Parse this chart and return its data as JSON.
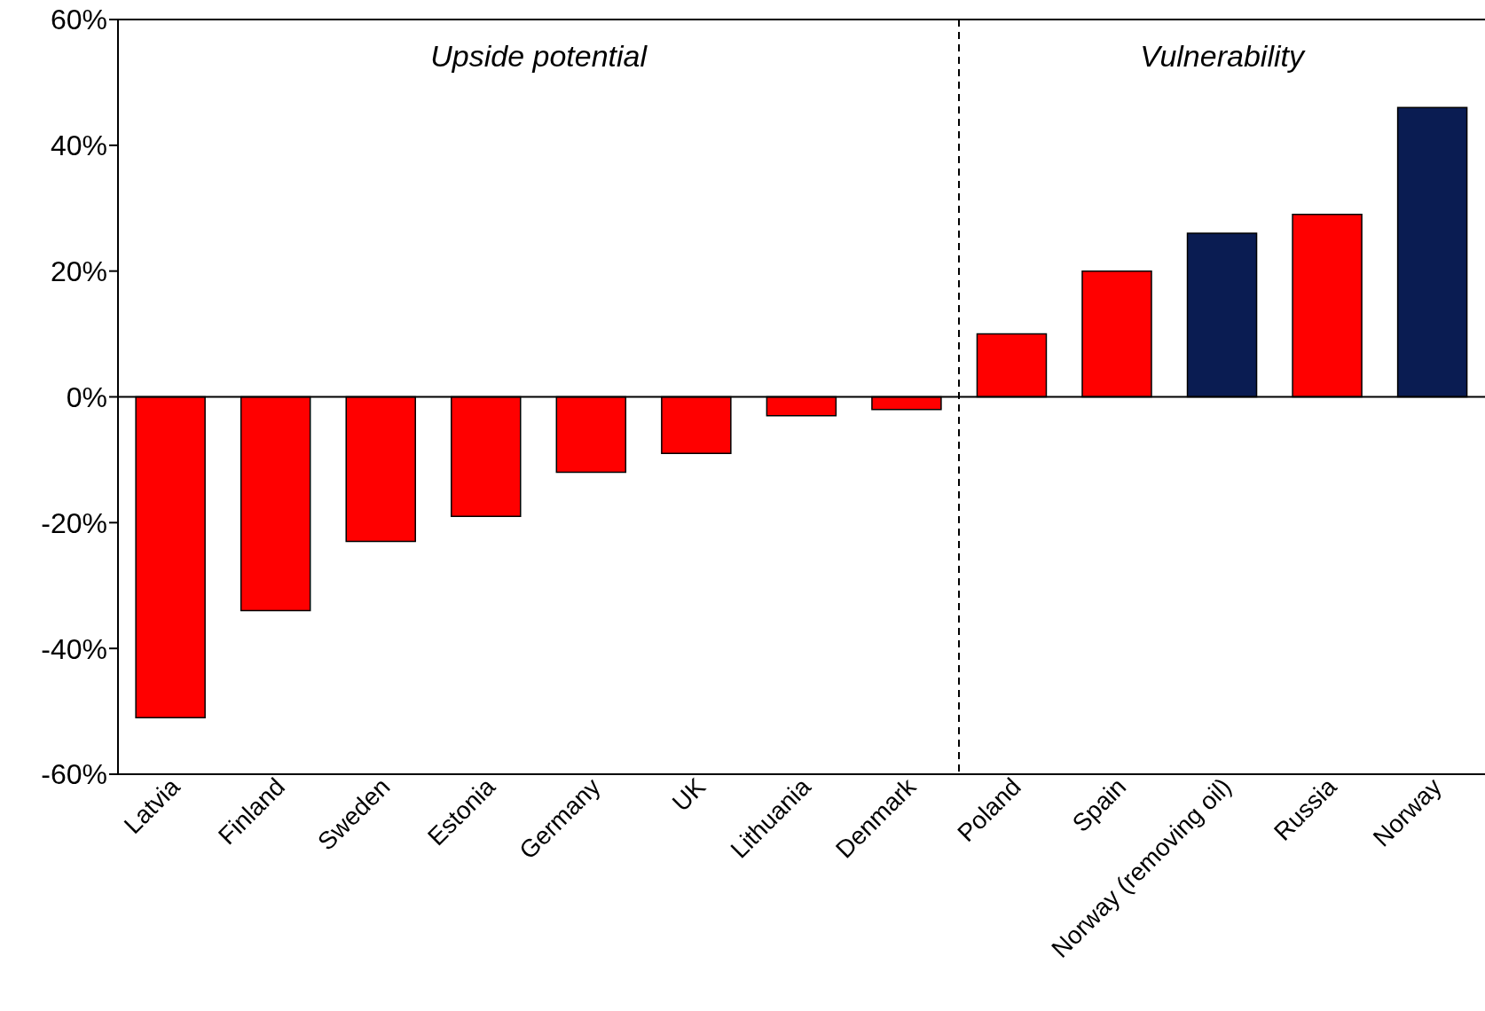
{
  "chart_data": {
    "type": "bar",
    "categories": [
      "Latvia",
      "Finland",
      "Sweden",
      "Estonia",
      "Germany",
      "UK",
      "Lithuania",
      "Denmark",
      "Poland",
      "Spain",
      "Norway (removing oil)",
      "Russia",
      "Norway"
    ],
    "values": [
      -51,
      -34,
      -23,
      -19,
      -12,
      -9,
      -3,
      -2,
      10,
      20,
      26,
      29,
      46
    ],
    "colors": [
      "#ff0000",
      "#ff0000",
      "#ff0000",
      "#ff0000",
      "#ff0000",
      "#ff0000",
      "#ff0000",
      "#ff0000",
      "#ff0000",
      "#ff0000",
      "#0a1c52",
      "#ff0000",
      "#0a1c52"
    ],
    "ylim": [
      -60,
      60
    ],
    "yticks": [
      {
        "value": -60,
        "label": "-60%"
      },
      {
        "value": -40,
        "label": "-40%"
      },
      {
        "value": -20,
        "label": "-20%"
      },
      {
        "value": 0,
        "label": "0%"
      },
      {
        "value": 20,
        "label": "20%"
      },
      {
        "value": 40,
        "label": "40%"
      },
      {
        "value": 60,
        "label": "60%"
      }
    ],
    "ref_lines": [
      {
        "axis": "x",
        "value": "Poland",
        "line_style": "dashed"
      }
    ],
    "annotations": [
      "Upside potential",
      "Vulnerability"
    ]
  }
}
